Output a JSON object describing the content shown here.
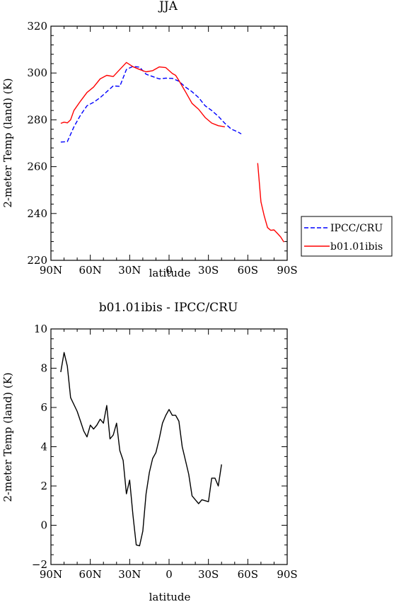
{
  "chart_data": [
    {
      "type": "line",
      "title": "JJA",
      "xlabel": "latitude",
      "ylabel": "2-meter Temp (land) (K)",
      "xlim": [
        90,
        -90
      ],
      "ylim": [
        220,
        320
      ],
      "xticks": [
        90,
        60,
        30,
        0,
        -30,
        -60,
        -90
      ],
      "xtick_labels": [
        "90N",
        "60N",
        "30N",
        "0",
        "30S",
        "60S",
        "90S"
      ],
      "yticks": [
        220,
        240,
        260,
        280,
        300,
        320
      ],
      "ytick_labels": [
        "220",
        "240",
        "260",
        "280",
        "300",
        "320"
      ],
      "legend_position": "right",
      "series": [
        {
          "name": "IPCC/CRU",
          "color": "#0000ff",
          "dash": "dashed",
          "x": [
            82.5,
            77.5,
            72.5,
            67.5,
            62.5,
            57.5,
            52.5,
            47.5,
            42.5,
            37.5,
            32.5,
            27.5,
            22.5,
            17.5,
            12.5,
            7.5,
            2.5,
            -2.5,
            -7.5,
            -12.5,
            -17.5,
            -22.5,
            -27.5,
            -32.5,
            -37.5,
            -42.5,
            -47.5,
            -52.5,
            -55
          ],
          "y": [
            270.5,
            270.7,
            277,
            282,
            286,
            287.5,
            289.5,
            292,
            294.5,
            294.3,
            301.5,
            302.8,
            302.5,
            299.5,
            298.5,
            297.5,
            297.8,
            297.7,
            296.5,
            294,
            292,
            289.5,
            286,
            284,
            281.5,
            278.5,
            276,
            274.8,
            274
          ]
        },
        {
          "name": "b01.01ibis",
          "color": "#ff0000",
          "dash": "solid",
          "x": [
            82.5,
            80,
            77.5,
            75,
            72.5,
            67.5,
            62.5,
            57.5,
            52.5,
            47.5,
            42.5,
            37.5,
            32.5,
            27.5,
            22.5,
            20,
            17.5,
            12.5,
            7.5,
            2.5,
            -2.5,
            -5,
            -7.5,
            -12.5,
            -17.5,
            -22.5,
            -27.5,
            -32.5,
            -37.5,
            -42.5,
            -47.5,
            -52.5,
            -55,
            null,
            -67.5,
            -70,
            -72.5,
            -75,
            -77.5,
            -80,
            -82.5,
            -85,
            -87.5
          ],
          "y": [
            278.5,
            279,
            278.7,
            280,
            284,
            288,
            291.7,
            294,
            297.5,
            299,
            298.5,
            301.5,
            304.5,
            302.7,
            301.5,
            301,
            300.5,
            301,
            302.6,
            302.3,
            299.8,
            299,
            296.8,
            292,
            287,
            284.5,
            281,
            278.6,
            277.5,
            277,
            null,
            null,
            null,
            null,
            261.5,
            245,
            239,
            234,
            232.8,
            233,
            231.5,
            230,
            227.8
          ]
        }
      ]
    },
    {
      "type": "line",
      "title": "b01.01ibis - IPCC/CRU",
      "xlabel": "latitude",
      "ylabel": "2-meter Temp (land) (K)",
      "xlim": [
        90,
        -90
      ],
      "ylim": [
        -2,
        10
      ],
      "xticks": [
        90,
        60,
        30,
        0,
        -30,
        -60,
        -90
      ],
      "xtick_labels": [
        "90N",
        "60N",
        "30N",
        "0",
        "30S",
        "60S",
        "90S"
      ],
      "yticks": [
        -2,
        0,
        2,
        4,
        6,
        8,
        10
      ],
      "ytick_labels": [
        "−2",
        "0",
        "2",
        "4",
        "6",
        "8",
        "10"
      ],
      "series": [
        {
          "color": "#000000",
          "dash": "solid",
          "x": [
            82.5,
            80,
            77.5,
            75,
            70,
            67.5,
            65,
            62.5,
            60,
            57.5,
            55,
            52.5,
            50,
            47.5,
            45,
            42.5,
            40,
            37.5,
            35,
            32.5,
            30,
            27.5,
            25,
            22.5,
            20,
            17.5,
            15,
            12.5,
            10,
            7.5,
            5,
            2.5,
            0,
            -2.5,
            -5,
            -7.5,
            -10,
            -12.5,
            -15,
            -17.5,
            -20,
            -22.5,
            -25,
            -27.5,
            -30,
            -32.5,
            -35,
            -37.5,
            -40,
            -42.5,
            -45,
            -47.5,
            -50,
            -52.5,
            -55
          ],
          "y": [
            7.8,
            8.8,
            8.1,
            6.5,
            5.8,
            5.3,
            4.8,
            4.5,
            5.1,
            4.9,
            5.1,
            5.4,
            5.2,
            6.1,
            4.4,
            4.6,
            5.2,
            3.8,
            3.3,
            1.6,
            2.3,
            0.5,
            -1.0,
            -1.05,
            -0.3,
            1.6,
            2.7,
            3.4,
            3.7,
            4.4,
            5.2,
            5.6,
            5.9,
            5.6,
            5.6,
            5.3,
            4.0,
            3.3,
            2.6,
            1.5,
            1.3,
            1.1,
            1.3,
            1.25,
            1.2,
            2.4,
            2.4,
            2.0,
            3.1,
            null,
            null,
            null,
            null,
            null,
            null
          ]
        }
      ]
    }
  ]
}
